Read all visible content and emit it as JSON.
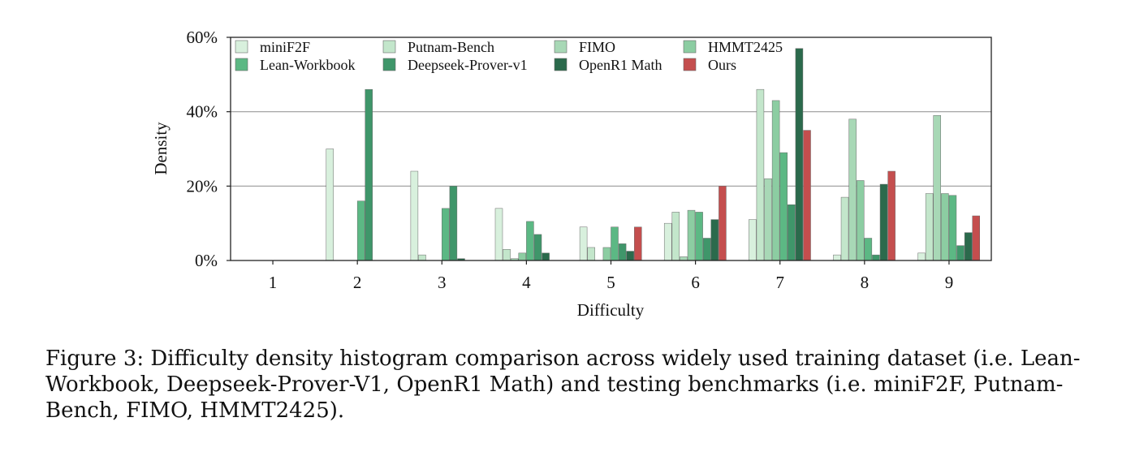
{
  "chart_data": {
    "type": "bar",
    "title": "",
    "xlabel": "Difficulty",
    "ylabel": "Density",
    "ylim": [
      0,
      60
    ],
    "yticks": [
      0,
      20,
      40,
      60
    ],
    "ytick_labels": [
      "0%",
      "20%",
      "40%",
      "60%"
    ],
    "grid": "horizontal",
    "legend_position": "top-left",
    "categories": [
      "1",
      "2",
      "3",
      "4",
      "5",
      "6",
      "7",
      "8",
      "9"
    ],
    "series": [
      {
        "name": "miniF2F",
        "color": "#d8f0dd",
        "values": [
          0,
          30,
          24,
          14,
          9,
          10,
          11,
          1.5,
          2
        ]
      },
      {
        "name": "Putnam-Bench",
        "color": "#c3e6cb",
        "values": [
          0,
          0,
          1.5,
          3,
          3.5,
          13,
          46,
          17,
          18
        ]
      },
      {
        "name": "FIMO",
        "color": "#a8d8b6",
        "values": [
          0,
          0,
          0,
          0.5,
          0,
          1,
          22,
          38,
          39
        ]
      },
      {
        "name": "HMMT2425",
        "color": "#8ccda2",
        "values": [
          0,
          0,
          0,
          2,
          3.5,
          13.5,
          43,
          21.5,
          18
        ]
      },
      {
        "name": "Lean-Workbook",
        "color": "#5cb884",
        "values": [
          0,
          16,
          14,
          10.5,
          9,
          13,
          29,
          6,
          17.5
        ]
      },
      {
        "name": "Deepseek-Prover-v1",
        "color": "#3f966a",
        "values": [
          0,
          46,
          20,
          7,
          4.5,
          6,
          15,
          1.5,
          4
        ]
      },
      {
        "name": "OpenR1 Math",
        "color": "#2b6a4c",
        "values": [
          0,
          0,
          0.5,
          2,
          2.5,
          11,
          57,
          20.5,
          7.5
        ]
      },
      {
        "name": "Ours",
        "color": "#c44e4e",
        "values": [
          0,
          0,
          0,
          0,
          9,
          20,
          35,
          24,
          12
        ]
      }
    ]
  },
  "caption": "Figure 3: Difficulty density histogram comparison across widely used training dataset (i.e. Lean-Workbook, Deepseek-Prover-V1, OpenR1 Math) and testing benchmarks (i.e. miniF2F, Putnam-Bench, FIMO, HMMT2425)."
}
